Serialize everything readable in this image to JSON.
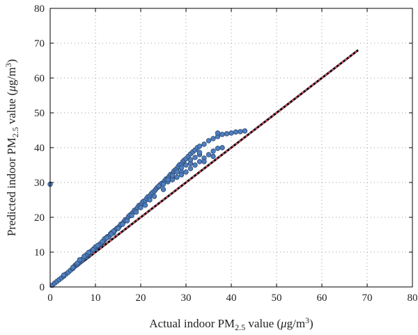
{
  "chart_data": {
    "type": "scatter",
    "xlabel": {
      "main": "Actual indoor PM",
      "sub": "2.5",
      "post": " value (",
      "mu": "μ",
      "unit": "g/m",
      "sup": "3",
      "close": ")"
    },
    "ylabel": {
      "main": "Predicted indoor PM",
      "sub": "2.5",
      "post": " value (",
      "mu": "μ",
      "unit": "g/m",
      "sup": "3",
      "close": ")"
    },
    "xlim": [
      0,
      80
    ],
    "ylim": [
      0,
      80
    ],
    "x_ticks": [
      "0",
      "10",
      "20",
      "30",
      "40",
      "50",
      "60",
      "70",
      "80"
    ],
    "y_ticks": [
      "0",
      "10",
      "20",
      "30",
      "40",
      "50",
      "60",
      "70",
      "80"
    ],
    "grid": true,
    "colors": {
      "points": "#4f7fc0",
      "point_edge": "#2d4a72",
      "diagonal": "#000000",
      "diagonal_dashes": "#e0506a"
    },
    "series": [
      {
        "type": "scatter",
        "points": [
          [
            0,
            29.5
          ],
          [
            0.5,
            0.5
          ],
          [
            1,
            1.1
          ],
          [
            1.5,
            1.6
          ],
          [
            2,
            2.1
          ],
          [
            2.5,
            2.6
          ],
          [
            3,
            3.1
          ],
          [
            3.5,
            3.7
          ],
          [
            4,
            4.2
          ],
          [
            4.5,
            4.8
          ],
          [
            5,
            5.3
          ],
          [
            5.3,
            5.8
          ],
          [
            5.5,
            6.2
          ],
          [
            5.8,
            6.5
          ],
          [
            6,
            6.4
          ],
          [
            6.2,
            6.9
          ],
          [
            6.5,
            7.0
          ],
          [
            6.8,
            7.4
          ],
          [
            7,
            7.5
          ],
          [
            7.2,
            8.0
          ],
          [
            7.5,
            8.3
          ],
          [
            7.8,
            8.7
          ],
          [
            8,
            8.6
          ],
          [
            8.3,
            9.1
          ],
          [
            8.5,
            9.4
          ],
          [
            8.8,
            9.8
          ],
          [
            9,
            10.2
          ],
          [
            9.3,
            10.5
          ],
          [
            9.6,
            10.9
          ],
          [
            10,
            11.0
          ],
          [
            10.4,
            11.6
          ],
          [
            10.8,
            12.1
          ],
          [
            11,
            12.0
          ],
          [
            11.4,
            12.7
          ],
          [
            11.8,
            13.2
          ],
          [
            12,
            13.5
          ],
          [
            12.3,
            14.0
          ],
          [
            12.6,
            14.4
          ],
          [
            13,
            14.5
          ],
          [
            13.3,
            15.2
          ],
          [
            13.6,
            15.6
          ],
          [
            14,
            15.5
          ],
          [
            14.3,
            16.3
          ],
          [
            14.7,
            16.8
          ],
          [
            15,
            17.0
          ],
          [
            15.3,
            17.4
          ],
          [
            15.6,
            18.0
          ],
          [
            16,
            18.2
          ],
          [
            16.3,
            18.8
          ],
          [
            16.6,
            19.3
          ],
          [
            17,
            19.5
          ],
          [
            17.3,
            20.2
          ],
          [
            17.6,
            20.6
          ],
          [
            18,
            21.0
          ],
          [
            18.3,
            21.4
          ],
          [
            18.6,
            22.0
          ],
          [
            19,
            22.3
          ],
          [
            19.3,
            22.8
          ],
          [
            19.6,
            23.4
          ],
          [
            20,
            23.5
          ],
          [
            20.3,
            24.1
          ],
          [
            20.6,
            24.6
          ],
          [
            21,
            24.8
          ],
          [
            21.3,
            25.4
          ],
          [
            21.6,
            25.9
          ],
          [
            22,
            26.0
          ],
          [
            22.3,
            26.7
          ],
          [
            22.6,
            27.1
          ],
          [
            23,
            27.5
          ],
          [
            23.3,
            28.0
          ],
          [
            23.6,
            28.5
          ],
          [
            24,
            28.8
          ],
          [
            24.3,
            29.3
          ],
          [
            24.6,
            29.7
          ],
          [
            25,
            30.0
          ],
          [
            25.3,
            30.5
          ],
          [
            25.6,
            31.0
          ],
          [
            26,
            31.2
          ],
          [
            26.3,
            31.8
          ],
          [
            26.6,
            32.3
          ],
          [
            27,
            32.5
          ],
          [
            27.3,
            33.2
          ],
          [
            27.6,
            33.6
          ],
          [
            28,
            34.0
          ],
          [
            28.3,
            34.6
          ],
          [
            28.6,
            35.1
          ],
          [
            29,
            35.3
          ],
          [
            29.3,
            36.0
          ],
          [
            29.6,
            36.4
          ],
          [
            30,
            36.8
          ],
          [
            30.5,
            37.5
          ],
          [
            31,
            38.2
          ],
          [
            31.5,
            38.8
          ],
          [
            32,
            39.3
          ],
          [
            32.5,
            40.0
          ],
          [
            33,
            40.4
          ],
          [
            34,
            41.0
          ],
          [
            35,
            42.0
          ],
          [
            36,
            42.6
          ],
          [
            37,
            43.2
          ],
          [
            38,
            43.8
          ],
          [
            39,
            44.0
          ],
          [
            40,
            44.2
          ],
          [
            41,
            44.5
          ],
          [
            42,
            44.6
          ],
          [
            43,
            44.8
          ],
          [
            33,
            38.0
          ],
          [
            31,
            35.5
          ],
          [
            29,
            33.0
          ],
          [
            27,
            31.0
          ],
          [
            25,
            28.0
          ],
          [
            23,
            26.0
          ],
          [
            21,
            23.5
          ],
          [
            19,
            21.5
          ],
          [
            17,
            19.0
          ],
          [
            15,
            16.8
          ],
          [
            13,
            14.4
          ],
          [
            11,
            12.3
          ],
          [
            9,
            10.0
          ],
          [
            7,
            7.9
          ],
          [
            5,
            5.6
          ],
          [
            3,
            3.4
          ],
          [
            24,
            29.0
          ],
          [
            25,
            29.5
          ],
          [
            26,
            30.2
          ],
          [
            27,
            30.8
          ],
          [
            28,
            31.5
          ],
          [
            29,
            32.2
          ],
          [
            30,
            33.0
          ],
          [
            31,
            34.0
          ],
          [
            32,
            35.0
          ],
          [
            33,
            36.0
          ],
          [
            34,
            37.0
          ],
          [
            35,
            38.0
          ],
          [
            36,
            39.0
          ],
          [
            37,
            39.8
          ],
          [
            38,
            40.0
          ],
          [
            37,
            44.2
          ],
          [
            36,
            37.5
          ],
          [
            34,
            36.0
          ],
          [
            22,
            25.0
          ],
          [
            20,
            22.8
          ],
          [
            18,
            20.5
          ],
          [
            16,
            18.0
          ],
          [
            14,
            16.0
          ],
          [
            12,
            13.8
          ],
          [
            10,
            11.5
          ],
          [
            8,
            9.2
          ],
          [
            6,
            6.8
          ],
          [
            30,
            35.0
          ],
          [
            31,
            36.5
          ],
          [
            32,
            37.2
          ],
          [
            33,
            38.6
          ],
          [
            28,
            33.0
          ],
          [
            27,
            32.0
          ],
          [
            26,
            30.8
          ],
          [
            29,
            34.2
          ],
          [
            6.5,
            7.8
          ],
          [
            7.5,
            8.8
          ],
          [
            8.5,
            9.9
          ],
          [
            9.5,
            10.7
          ],
          [
            10.5,
            11.9
          ],
          [
            11.5,
            13.0
          ],
          [
            12.5,
            14.1
          ],
          [
            13.5,
            15.2
          ]
        ]
      }
    ]
  }
}
